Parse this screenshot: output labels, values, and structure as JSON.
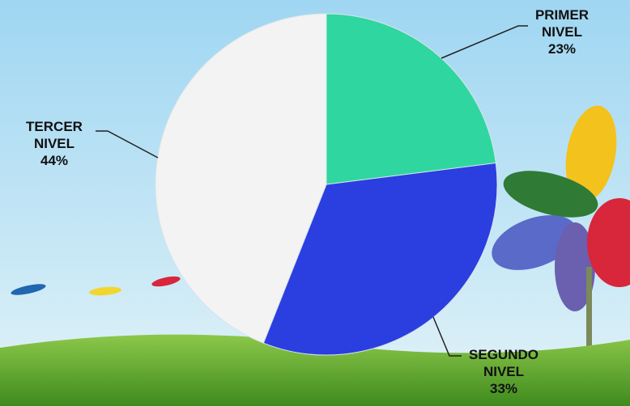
{
  "chart_data": {
    "type": "pie",
    "categories": [
      "PRIMER NIVEL",
      "SEGUNDO NIVEL",
      "TERCER NIVEL"
    ],
    "values": [
      23,
      33,
      44
    ],
    "value_labels": [
      "23%",
      "33%",
      "44%"
    ],
    "colors": [
      "#2fd6a0",
      "#2b3fe0",
      "#f3f3f3"
    ]
  }
}
